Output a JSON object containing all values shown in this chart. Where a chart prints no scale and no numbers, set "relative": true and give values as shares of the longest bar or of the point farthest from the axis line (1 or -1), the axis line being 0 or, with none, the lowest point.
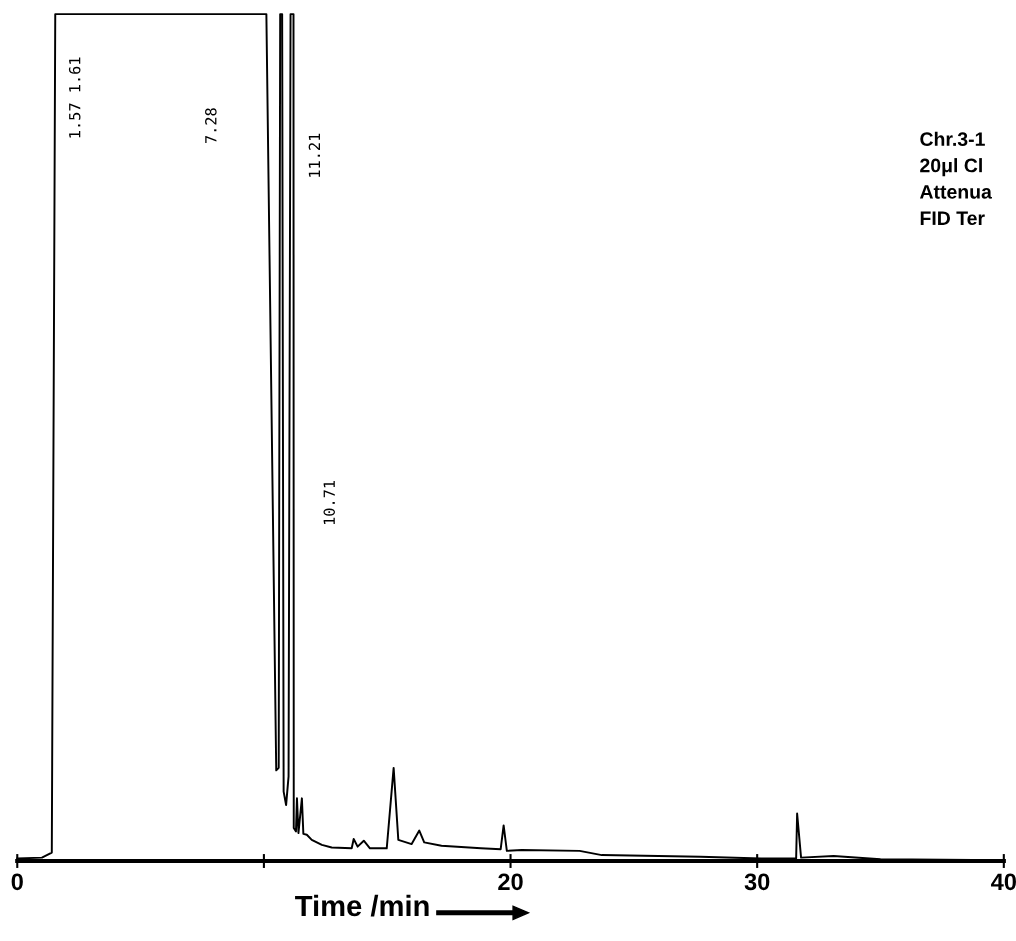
{
  "chart_data": {
    "type": "line",
    "relative": true,
    "xlabel": "Time /min",
    "xlim": [
      0,
      40
    ],
    "xticks": [
      0,
      {
        "value": 10,
        "label": null
      },
      20,
      30,
      40
    ],
    "tick_labels": "x",
    "grid": false,
    "legend": false,
    "marker": "none",
    "line_style": "solid",
    "series": [
      {
        "color": "#000000",
        "x": [
          0,
          1.0,
          1.4,
          1.54,
          10.1,
          10.5,
          10.6,
          10.66,
          10.74,
          10.8,
          10.9,
          11.0,
          11.08,
          11.2,
          11.21,
          11.3,
          11.34,
          11.4,
          11.54,
          11.6,
          11.74,
          11.94,
          12.35,
          12.75,
          13.56,
          13.64,
          13.8,
          14.05,
          14.3,
          14.98,
          15.26,
          15.45,
          15.99,
          16.3,
          16.5,
          17.2,
          18.8,
          19.6,
          19.72,
          19.85,
          20.45,
          22.8,
          23.7,
          27.7,
          30.16,
          31.58,
          31.62,
          31.78,
          33.1,
          35,
          40
        ],
        "values": [
          0.003,
          0.004,
          0.01,
          1,
          1,
          0.107,
          0.11,
          1,
          1,
          0.082,
          0.066,
          0.1,
          1,
          1,
          0.039,
          0.035,
          0.074,
          0.033,
          0.074,
          0.032,
          0.031,
          0.025,
          0.019,
          0.016,
          0.015,
          0.026,
          0.017,
          0.024,
          0.015,
          0.015,
          0.11,
          0.025,
          0.02,
          0.036,
          0.022,
          0.018,
          0.015,
          0.014,
          0.042,
          0.012,
          0.013,
          0.012,
          0.007,
          0.005,
          0.003,
          0.003,
          0.056,
          0.004,
          0.006,
          0.002,
          0.001
        ]
      }
    ],
    "annotations": [
      "1.57 1.61",
      "7.28",
      "11.21",
      "10.71",
      "Chr.3-1",
      "20μl Cl",
      "Attenua",
      "FID Ter"
    ]
  }
}
